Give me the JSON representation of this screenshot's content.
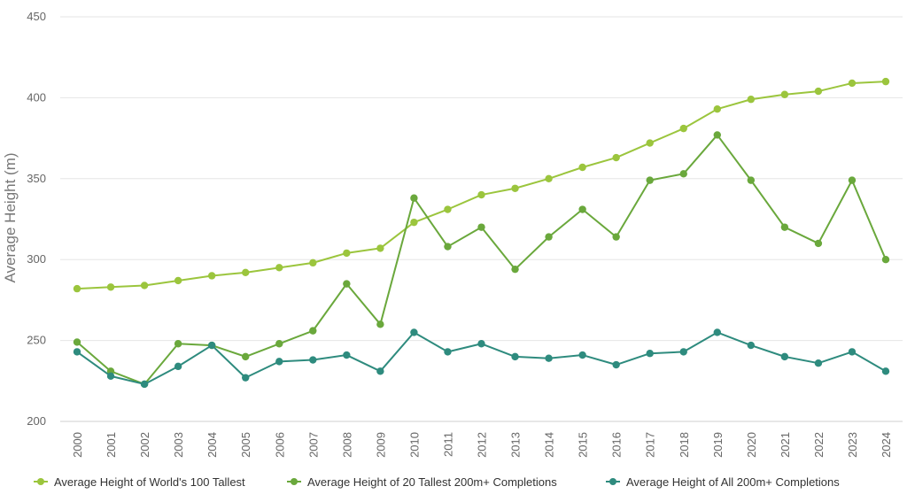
{
  "chart_data": {
    "type": "line",
    "title": "",
    "xlabel": "",
    "ylabel": "Average Height (m)",
    "ylim": [
      200,
      450
    ],
    "yticks": [
      "200",
      "250",
      "300",
      "350",
      "400",
      "450"
    ],
    "grid": true,
    "legend_position": "bottom",
    "categories": [
      "2000",
      "2001",
      "2002",
      "2003",
      "2004",
      "2005",
      "2006",
      "2007",
      "2008",
      "2009",
      "2010",
      "2011",
      "2012",
      "2013",
      "2014",
      "2015",
      "2016",
      "2017",
      "2018",
      "2019",
      "2020",
      "2021",
      "2022",
      "2023",
      "2024"
    ],
    "series": [
      {
        "name": "Average Height of World's 100 Tallest",
        "color": "#9bc53d",
        "values": [
          282,
          283,
          284,
          287,
          290,
          292,
          295,
          298,
          304,
          307,
          323,
          331,
          340,
          344,
          350,
          357,
          363,
          372,
          381,
          393,
          399,
          402,
          404,
          409,
          410
        ]
      },
      {
        "name": "Average Height of 20 Tallest 200m+ Completions",
        "color": "#6aa83c",
        "values": [
          249,
          231,
          223,
          248,
          247,
          240,
          248,
          256,
          285,
          260,
          338,
          308,
          320,
          294,
          314,
          331,
          314,
          349,
          353,
          377,
          349,
          320,
          310,
          349,
          300
        ]
      },
      {
        "name": "Average Height of All 200m+ Completions",
        "color": "#2e8b7e",
        "values": [
          243,
          228,
          223,
          234,
          247,
          227,
          237,
          238,
          241,
          231,
          255,
          243,
          248,
          240,
          239,
          241,
          235,
          242,
          243,
          255,
          247,
          240,
          236,
          243,
          231
        ]
      }
    ]
  }
}
